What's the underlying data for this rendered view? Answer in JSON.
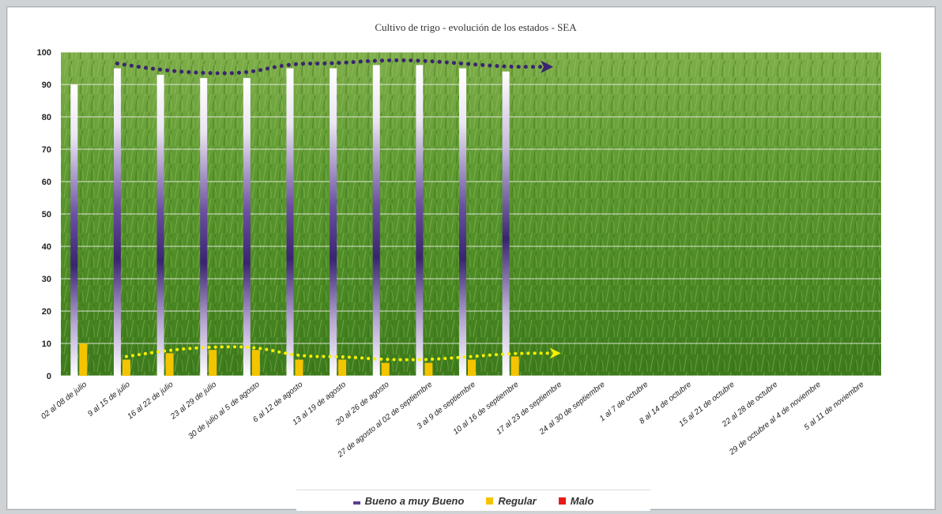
{
  "chart_data": {
    "type": "bar",
    "title": "Cultivo de trigo - evolución de los estados - SEA",
    "categories": [
      "02 al 08 de julio",
      "9 al 15 de julio",
      "16 al 22 de julio",
      "23 al 29 de julio",
      "30 de julio al 5 de agosto",
      "6 al 12 de agosto",
      "13 al 19 de agosto",
      "20 al 26 de agosto",
      "27 de agosto al 02 de septiembre",
      "3 al 9 de septiembre",
      "10 al 16 de septiembre",
      "17 al 23 de septiembre",
      "24 al 30 de septiembre",
      "1 al 7 de octubre",
      "8 al 14 de octubre",
      "15 al 21 de octubre",
      "22 al 28 de octubre",
      "29 de octubre al 4 de noviembre",
      "5 al 11 de noviembre"
    ],
    "series": [
      {
        "name": "Bueno a muy Bueno",
        "color": "#4a2d7f",
        "values": [
          90,
          95,
          93,
          92,
          92,
          95,
          95,
          96,
          96,
          95,
          94,
          null,
          null,
          null,
          null,
          null,
          null,
          null,
          null
        ]
      },
      {
        "name": "Regular",
        "color": "#f5c400",
        "values": [
          10,
          5,
          7,
          8,
          8,
          5,
          5,
          4,
          4,
          5,
          6,
          null,
          null,
          null,
          null,
          null,
          null,
          null,
          null
        ]
      },
      {
        "name": "Malo",
        "color": "#e8191b",
        "values": [
          0,
          0,
          0,
          0,
          0,
          0,
          0,
          0,
          0,
          0,
          0,
          null,
          null,
          null,
          null,
          null,
          null,
          null,
          null
        ]
      }
    ],
    "ylim": [
      0,
      100
    ],
    "yticks": [
      0,
      10,
      20,
      30,
      40,
      50,
      60,
      70,
      80,
      90,
      100
    ],
    "grid": true,
    "legend_position": "bottom",
    "background": "photo of green wheat field",
    "annotations": [
      {
        "type": "dotted-trend-arrow",
        "series": "Bueno a muy Bueno",
        "color": "#3a2470"
      },
      {
        "type": "dotted-trend-arrow",
        "series": "Regular",
        "color": "#f5f000"
      }
    ]
  }
}
